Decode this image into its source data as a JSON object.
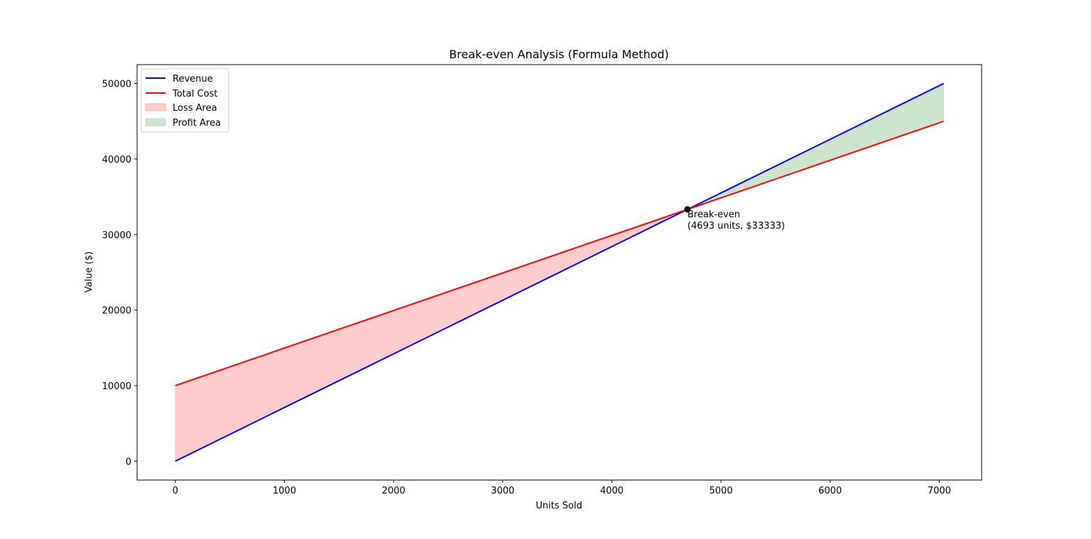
{
  "chart_data": {
    "type": "line",
    "title": "Break-even Analysis (Formula Method)",
    "xlabel": "Units Sold",
    "ylabel": "Value ($)",
    "xlim": [
      -350,
      7388
    ],
    "ylim": [
      -2500,
      52500
    ],
    "xticks": [
      0,
      1000,
      2000,
      3000,
      4000,
      5000,
      6000,
      7000
    ],
    "yticks": [
      0,
      10000,
      20000,
      30000,
      40000,
      50000
    ],
    "grid": false,
    "legend_position": "top-left",
    "series": [
      {
        "name": "Revenue",
        "color": "#0000ff",
        "x": [
          0,
          7040
        ],
        "y": [
          0,
          50000
        ]
      },
      {
        "name": "Total Cost",
        "color": "#ff0000",
        "x": [
          0,
          7040
        ],
        "y": [
          10000,
          45000
        ]
      }
    ],
    "areas": [
      {
        "name": "Loss Area",
        "color": "#ffcccc",
        "x_range": [
          0,
          4693
        ]
      },
      {
        "name": "Profit Area",
        "color": "#cce5cc",
        "x_range": [
          4693,
          7040
        ]
      }
    ],
    "break_even": {
      "x": 4693,
      "y": 33333,
      "label_line1": "Break-even",
      "label_line2": "(4693 units, $33333)"
    }
  }
}
